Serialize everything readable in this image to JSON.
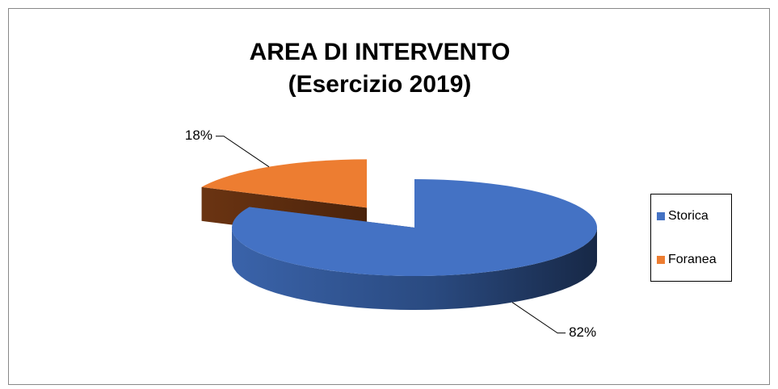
{
  "chart_data": {
    "type": "pie",
    "title": "AREA DI INTERVENTO",
    "subtitle": "(Esercizio 2019)",
    "categories": [
      "Storica",
      "Foranea"
    ],
    "values": [
      82,
      18
    ],
    "value_labels": [
      "82%",
      "18%"
    ],
    "colors": [
      "#4472c4",
      "#ed7d31"
    ],
    "legend": "right"
  }
}
